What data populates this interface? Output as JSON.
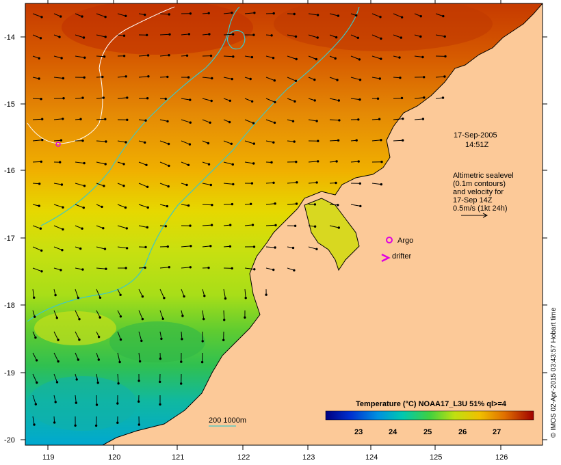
{
  "map": {
    "lon_ticks": [
      "119",
      "120",
      "121",
      "122",
      "123",
      "124",
      "125",
      "126"
    ],
    "lat_ticks": [
      "-14",
      "-15",
      "-16",
      "-17",
      "-18",
      "-19",
      "-20"
    ],
    "date_line1": "17-Sep-2005",
    "date_line2": "14:51Z",
    "legend_lines": [
      "Altimetric sealevel",
      "(0.1m contours)",
      "and velocity for",
      "17-Sep 14Z",
      "0.5m/s (1kt 24h)"
    ],
    "argo_label": "Argo",
    "drifter_label": "drifter",
    "depth_label": "200  1000m",
    "colorbar": {
      "title": "Temperature (°C) NOAA17_L3U 51% ql>=4",
      "labels": [
        "23",
        "24",
        "25",
        "26",
        "27"
      ]
    },
    "credit": "© IMOS 02-Apr-2015 03:43:57 Hobart time",
    "colors": {
      "land": "#fcc998",
      "contour": "#3cc8c8",
      "white_contour": "#ffffff",
      "marker": "#e000e0"
    }
  }
}
